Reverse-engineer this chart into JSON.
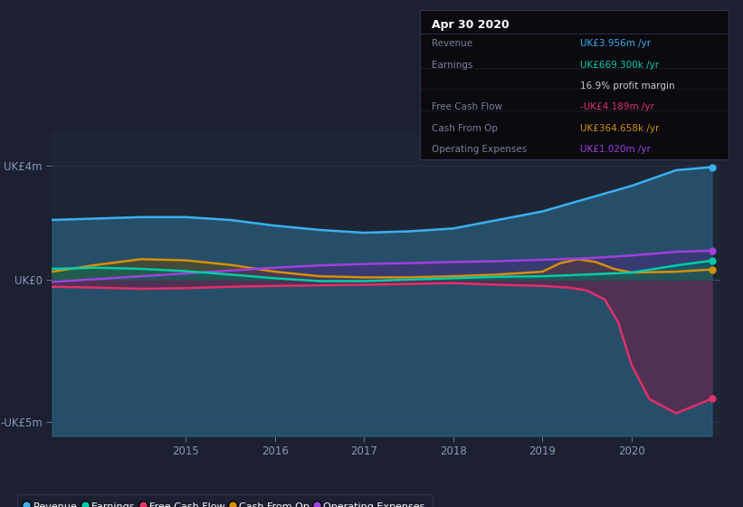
{
  "bg_color": "#1c2030",
  "plot_bg_color": "#1e2535",
  "grid_color": "#2a3048",
  "ylim": [
    -5.5,
    5.2
  ],
  "xlim": [
    2013.5,
    2021.0
  ],
  "yticks": [
    -5,
    0,
    4
  ],
  "ytick_labels": [
    "-UK£5m",
    "UK£0",
    "UK£4m"
  ],
  "xtick_labels": [
    "2015",
    "2016",
    "2017",
    "2018",
    "2019",
    "2020"
  ],
  "xtick_values": [
    2015,
    2016,
    2017,
    2018,
    2019,
    2020
  ],
  "series": {
    "Revenue": {
      "color": "#3ab0f0",
      "fill_color": "#2a6080",
      "fill_alpha": 0.7,
      "fill_baseline": -5.5,
      "x": [
        2013.5,
        2014.0,
        2014.5,
        2015.0,
        2015.5,
        2016.0,
        2016.5,
        2017.0,
        2017.5,
        2018.0,
        2018.5,
        2019.0,
        2019.5,
        2020.0,
        2020.5,
        2020.9
      ],
      "y": [
        2.1,
        2.15,
        2.2,
        2.2,
        2.1,
        1.9,
        1.75,
        1.65,
        1.7,
        1.8,
        2.1,
        2.4,
        2.85,
        3.3,
        3.85,
        3.96
      ]
    },
    "Earnings": {
      "color": "#00ccaa",
      "fill_color": "#007060",
      "fill_alpha": 0.5,
      "fill_baseline": 0,
      "x": [
        2013.5,
        2014.0,
        2014.5,
        2015.0,
        2015.5,
        2016.0,
        2016.5,
        2017.0,
        2017.5,
        2018.0,
        2018.5,
        2019.0,
        2019.5,
        2020.0,
        2020.5,
        2020.9
      ],
      "y": [
        0.38,
        0.42,
        0.38,
        0.3,
        0.18,
        0.05,
        -0.05,
        -0.05,
        0.0,
        0.05,
        0.1,
        0.12,
        0.18,
        0.25,
        0.5,
        0.67
      ]
    },
    "Free Cash Flow": {
      "color": "#e0306a",
      "fill_color": "#7a1540",
      "fill_alpha": 0.5,
      "fill_baseline": 0,
      "x": [
        2013.5,
        2014.0,
        2014.5,
        2015.0,
        2015.5,
        2016.0,
        2016.5,
        2017.0,
        2017.5,
        2018.0,
        2018.5,
        2019.0,
        2019.3,
        2019.5,
        2019.7,
        2019.85,
        2020.0,
        2020.2,
        2020.5,
        2020.9
      ],
      "y": [
        -0.25,
        -0.28,
        -0.32,
        -0.3,
        -0.25,
        -0.22,
        -0.2,
        -0.18,
        -0.15,
        -0.12,
        -0.18,
        -0.22,
        -0.28,
        -0.38,
        -0.7,
        -1.5,
        -3.0,
        -4.2,
        -4.7,
        -4.19
      ]
    },
    "Cash From Op": {
      "color": "#d4900a",
      "fill_color": "#6a4800",
      "fill_alpha": 0.45,
      "fill_baseline": 0,
      "x": [
        2013.5,
        2014.0,
        2014.5,
        2015.0,
        2015.5,
        2016.0,
        2016.5,
        2017.0,
        2017.5,
        2018.0,
        2018.5,
        2019.0,
        2019.2,
        2019.4,
        2019.6,
        2019.8,
        2020.0,
        2020.5,
        2020.9
      ],
      "y": [
        0.28,
        0.52,
        0.72,
        0.68,
        0.52,
        0.28,
        0.12,
        0.08,
        0.08,
        0.12,
        0.18,
        0.28,
        0.58,
        0.72,
        0.62,
        0.38,
        0.25,
        0.28,
        0.36
      ]
    },
    "Operating Expenses": {
      "color": "#a040e0",
      "fill_color": "#5a1880",
      "fill_alpha": 0.35,
      "fill_baseline": 0,
      "x": [
        2013.5,
        2014.0,
        2014.5,
        2015.0,
        2015.5,
        2016.0,
        2016.5,
        2017.0,
        2017.5,
        2018.0,
        2018.5,
        2019.0,
        2019.5,
        2020.0,
        2020.5,
        2020.9
      ],
      "y": [
        -0.08,
        0.02,
        0.12,
        0.22,
        0.32,
        0.42,
        0.5,
        0.55,
        0.58,
        0.62,
        0.65,
        0.7,
        0.75,
        0.85,
        0.98,
        1.02
      ]
    }
  },
  "tooltip_box": {
    "title": "Apr 30 2020",
    "title_color": "#ffffff",
    "bg": "#0a0a0f",
    "border_color": "#333355",
    "rows": [
      {
        "label": "Revenue",
        "value": "UK£3.956m /yr",
        "value_color": "#3ab0f0",
        "label_color": "#7a8099"
      },
      {
        "label": "Earnings",
        "value": "UK£669.300k /yr",
        "value_color": "#00ccaa",
        "label_color": "#7a8099"
      },
      {
        "label": "",
        "value": "16.9% profit margin",
        "value_color": "#cccccc",
        "label_color": "#7a8099"
      },
      {
        "label": "Free Cash Flow",
        "value": "-UK£4.189m /yr",
        "value_color": "#e0306a",
        "label_color": "#7a8099"
      },
      {
        "label": "Cash From Op",
        "value": "UK£364.658k /yr",
        "value_color": "#d4900a",
        "label_color": "#7a8099"
      },
      {
        "label": "Operating Expenses",
        "value": "UK£1.020m /yr",
        "value_color": "#a040e0",
        "label_color": "#7a8099"
      }
    ]
  },
  "legend": [
    {
      "label": "Revenue",
      "color": "#3ab0f0"
    },
    {
      "label": "Earnings",
      "color": "#00ccaa"
    },
    {
      "label": "Free Cash Flow",
      "color": "#e0306a"
    },
    {
      "label": "Cash From Op",
      "color": "#d4900a"
    },
    {
      "label": "Operating Expenses",
      "color": "#a040e0"
    }
  ]
}
